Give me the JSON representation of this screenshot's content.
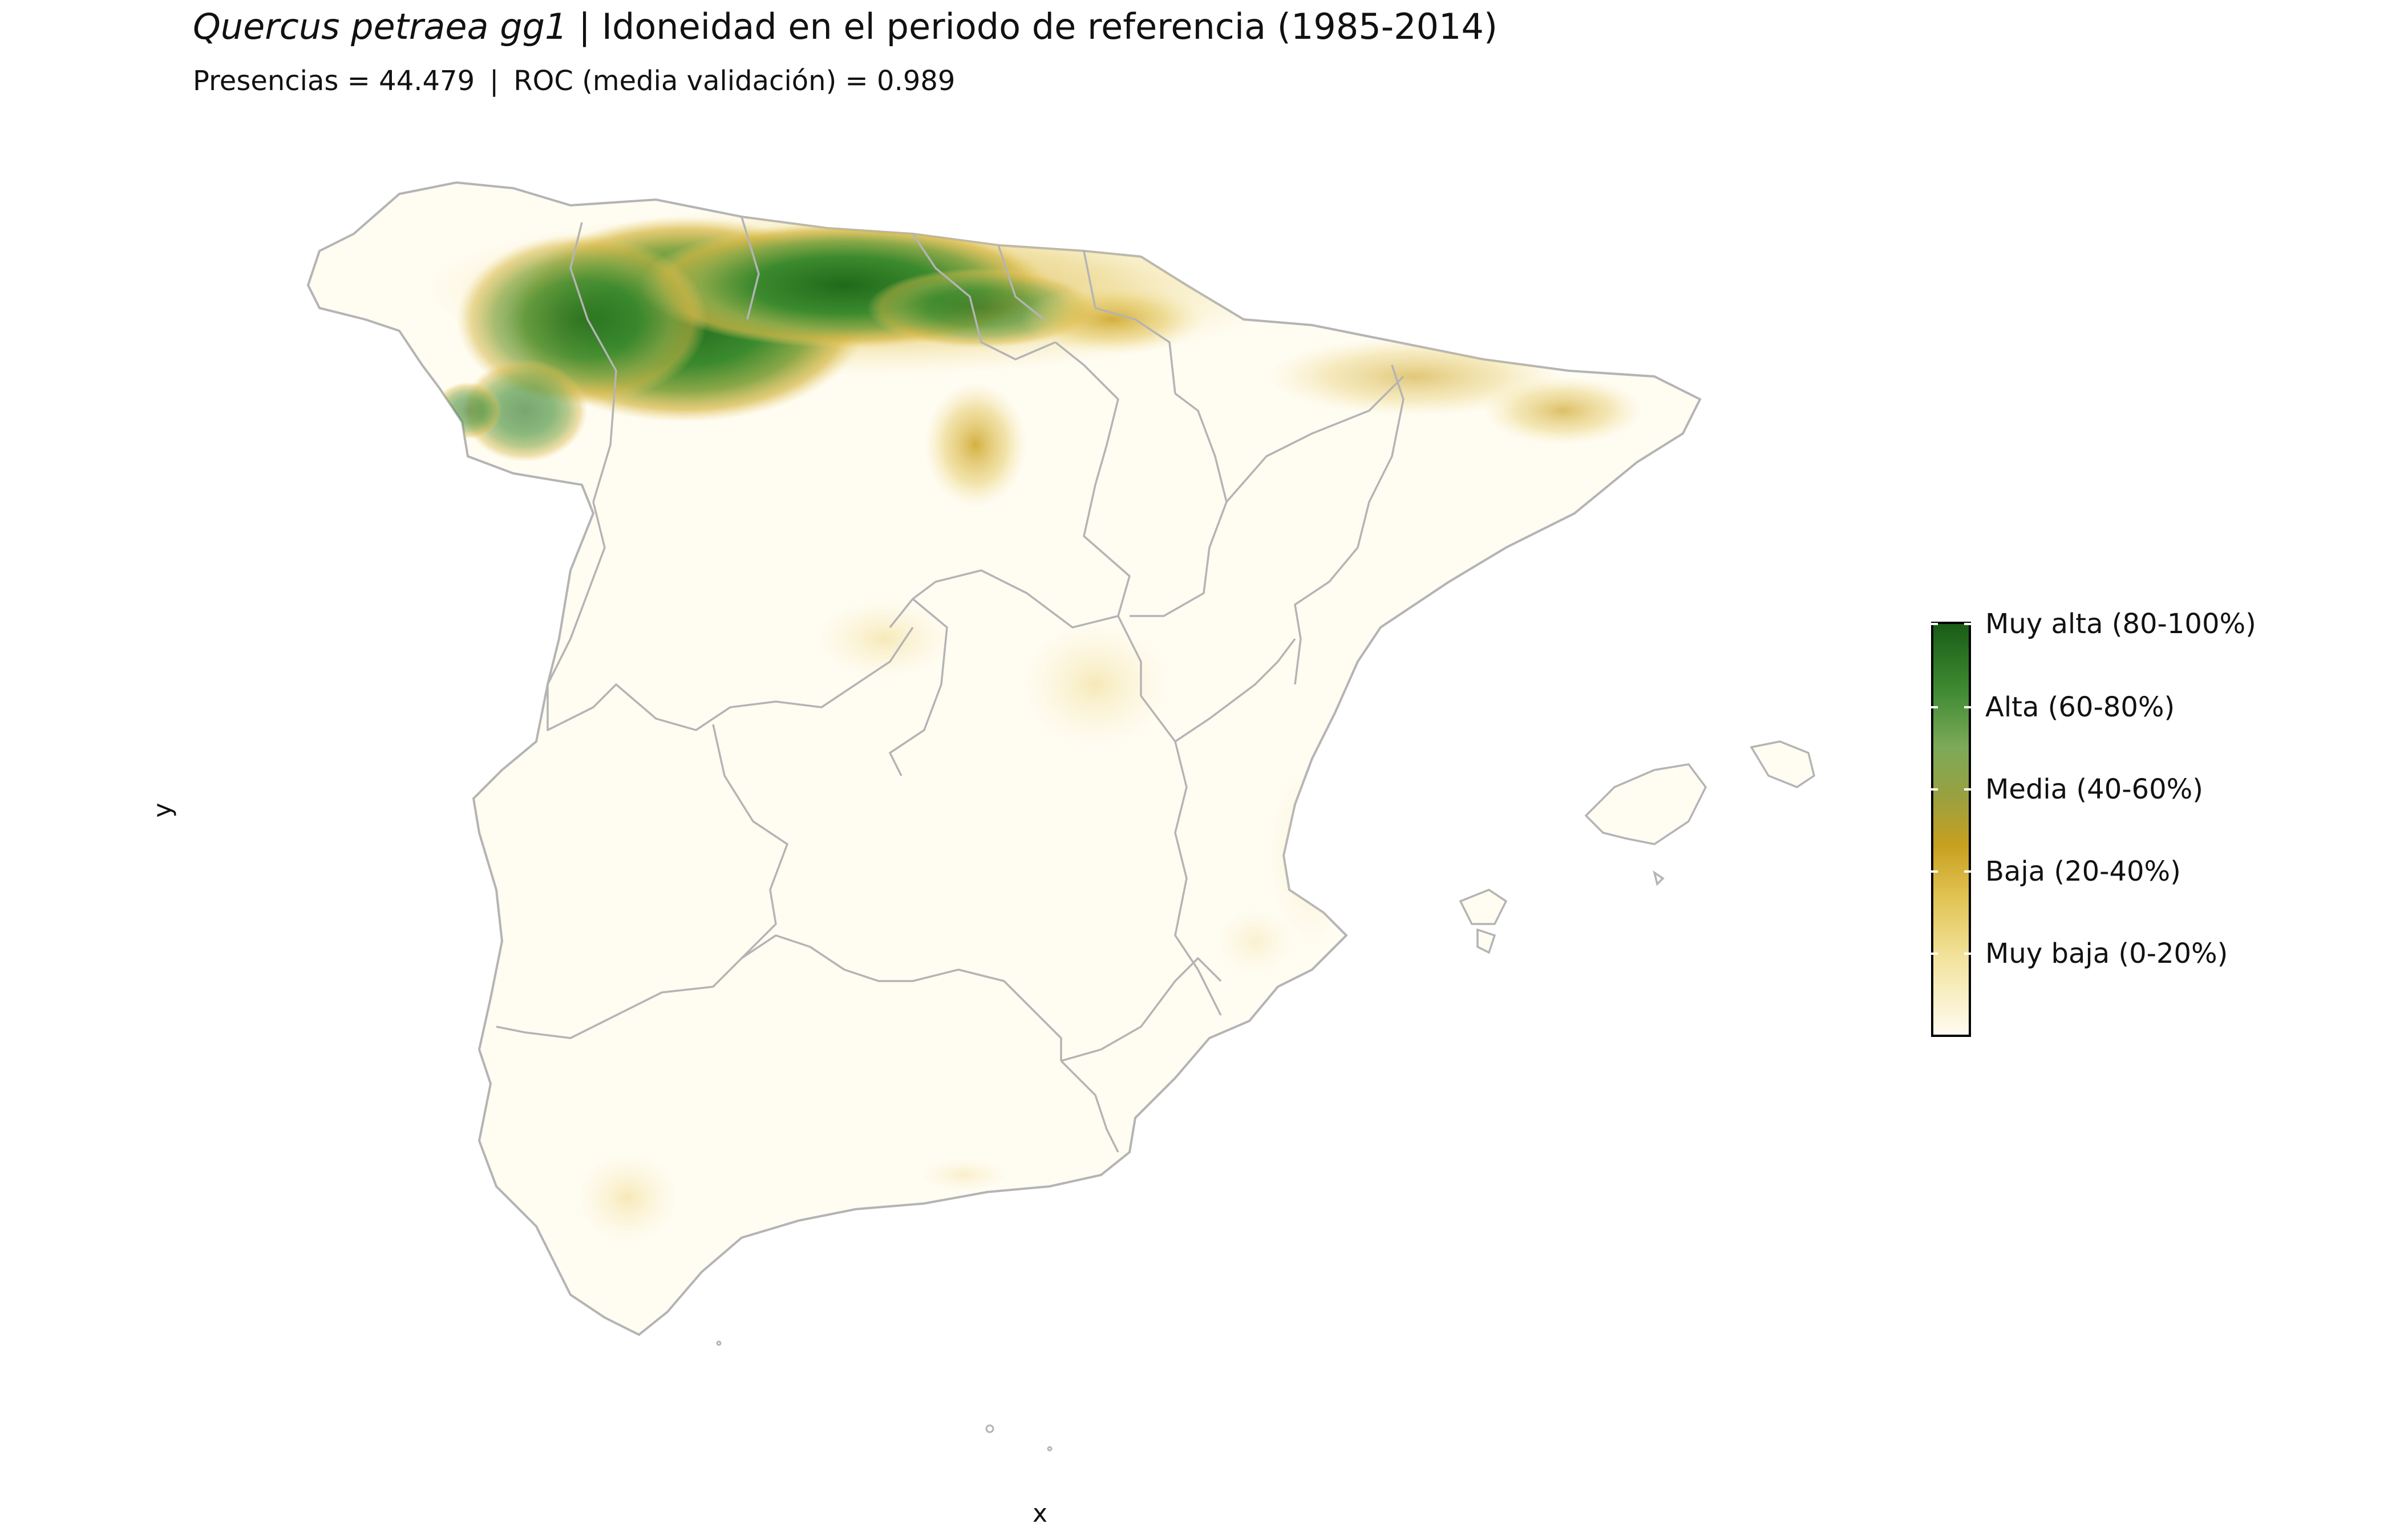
{
  "title": {
    "species": "Quercus petraea gg1",
    "separator": " | ",
    "text": "Idoneidad en el periodo de referencia (1985-2014)"
  },
  "subtitle": {
    "presences": "Presencias = 44.479",
    "separator": "|",
    "roc": "ROC (media validación) = 0.989"
  },
  "axes": {
    "x_label": "x",
    "y_label": "y"
  },
  "legend": {
    "labels": [
      "Muy alta (80-100%)",
      "Alta (60-80%)",
      "Media (40-60%)",
      "Baja (20-40%)",
      "Muy baja (0-20%)"
    ],
    "colors": {
      "muy_alta": "#1a5c16",
      "alta": "#7caa58",
      "media": "#9aa040",
      "baja": "#c8a020",
      "muy_baja": "#f3e4a0",
      "none": "#fffbf0"
    }
  },
  "colors": {
    "border": "#b4b4b4",
    "background": "#ffffff"
  }
}
